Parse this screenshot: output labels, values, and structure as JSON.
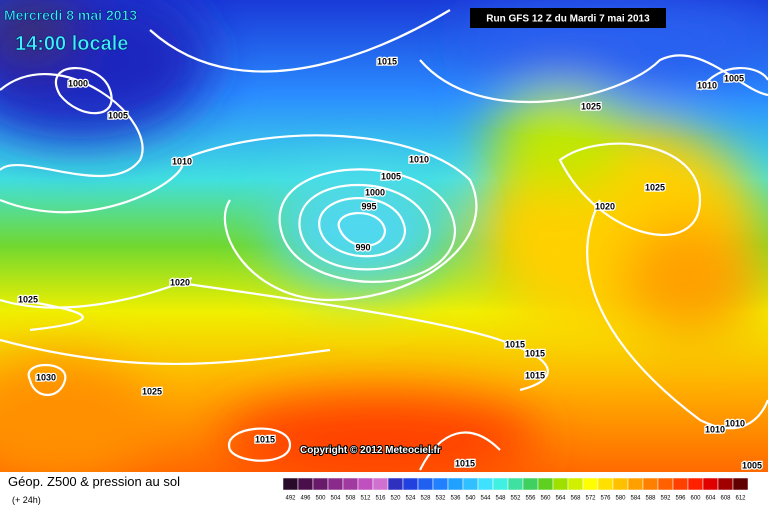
{
  "header": {
    "date": "Mercredi 8 mai 2013",
    "time": "14:00 locale",
    "run": "Run GFS 12 Z du Mardi 7 mai 2013"
  },
  "isobar_labels": [
    "1000",
    "1005",
    "1015",
    "1005",
    "1010",
    "1025",
    "1010",
    "1010",
    "1005",
    "1000",
    "995",
    "990",
    "1025",
    "1020",
    "1020",
    "1025",
    "1015",
    "1015",
    "1015",
    "1030",
    "1025",
    "1015",
    "1010",
    "1010",
    "1015",
    "1005"
  ],
  "copyright": "Copyright © 2012 Meteociel.fr",
  "footer": {
    "title": "Géop. Z500 & pression au sol",
    "subtitle": "(+ 24h)"
  },
  "scale": {
    "labels": [
      "492",
      "496",
      "500",
      "504",
      "508",
      "512",
      "516",
      "520",
      "524",
      "528",
      "532",
      "536",
      "540",
      "544",
      "548",
      "552",
      "556",
      "560",
      "564",
      "568",
      "572",
      "576",
      "580",
      "584",
      "588",
      "592",
      "596",
      "600",
      "604",
      "608",
      "612"
    ],
    "colors": [
      "#2a0a2a",
      "#4a0f4a",
      "#6a1a6a",
      "#8a2a8a",
      "#a03aa0",
      "#c050c0",
      "#d070d0",
      "#3030c0",
      "#2040e0",
      "#2060f0",
      "#2080ff",
      "#20a0ff",
      "#30c0ff",
      "#40e0ff",
      "#40f0e0",
      "#40e0a0",
      "#40d060",
      "#60d020",
      "#a0e000",
      "#d0f000",
      "#ffff00",
      "#ffe000",
      "#ffc000",
      "#ffa000",
      "#ff8000",
      "#ff6000",
      "#ff4000",
      "#ff2000",
      "#e00000",
      "#a00000",
      "#600000"
    ]
  }
}
